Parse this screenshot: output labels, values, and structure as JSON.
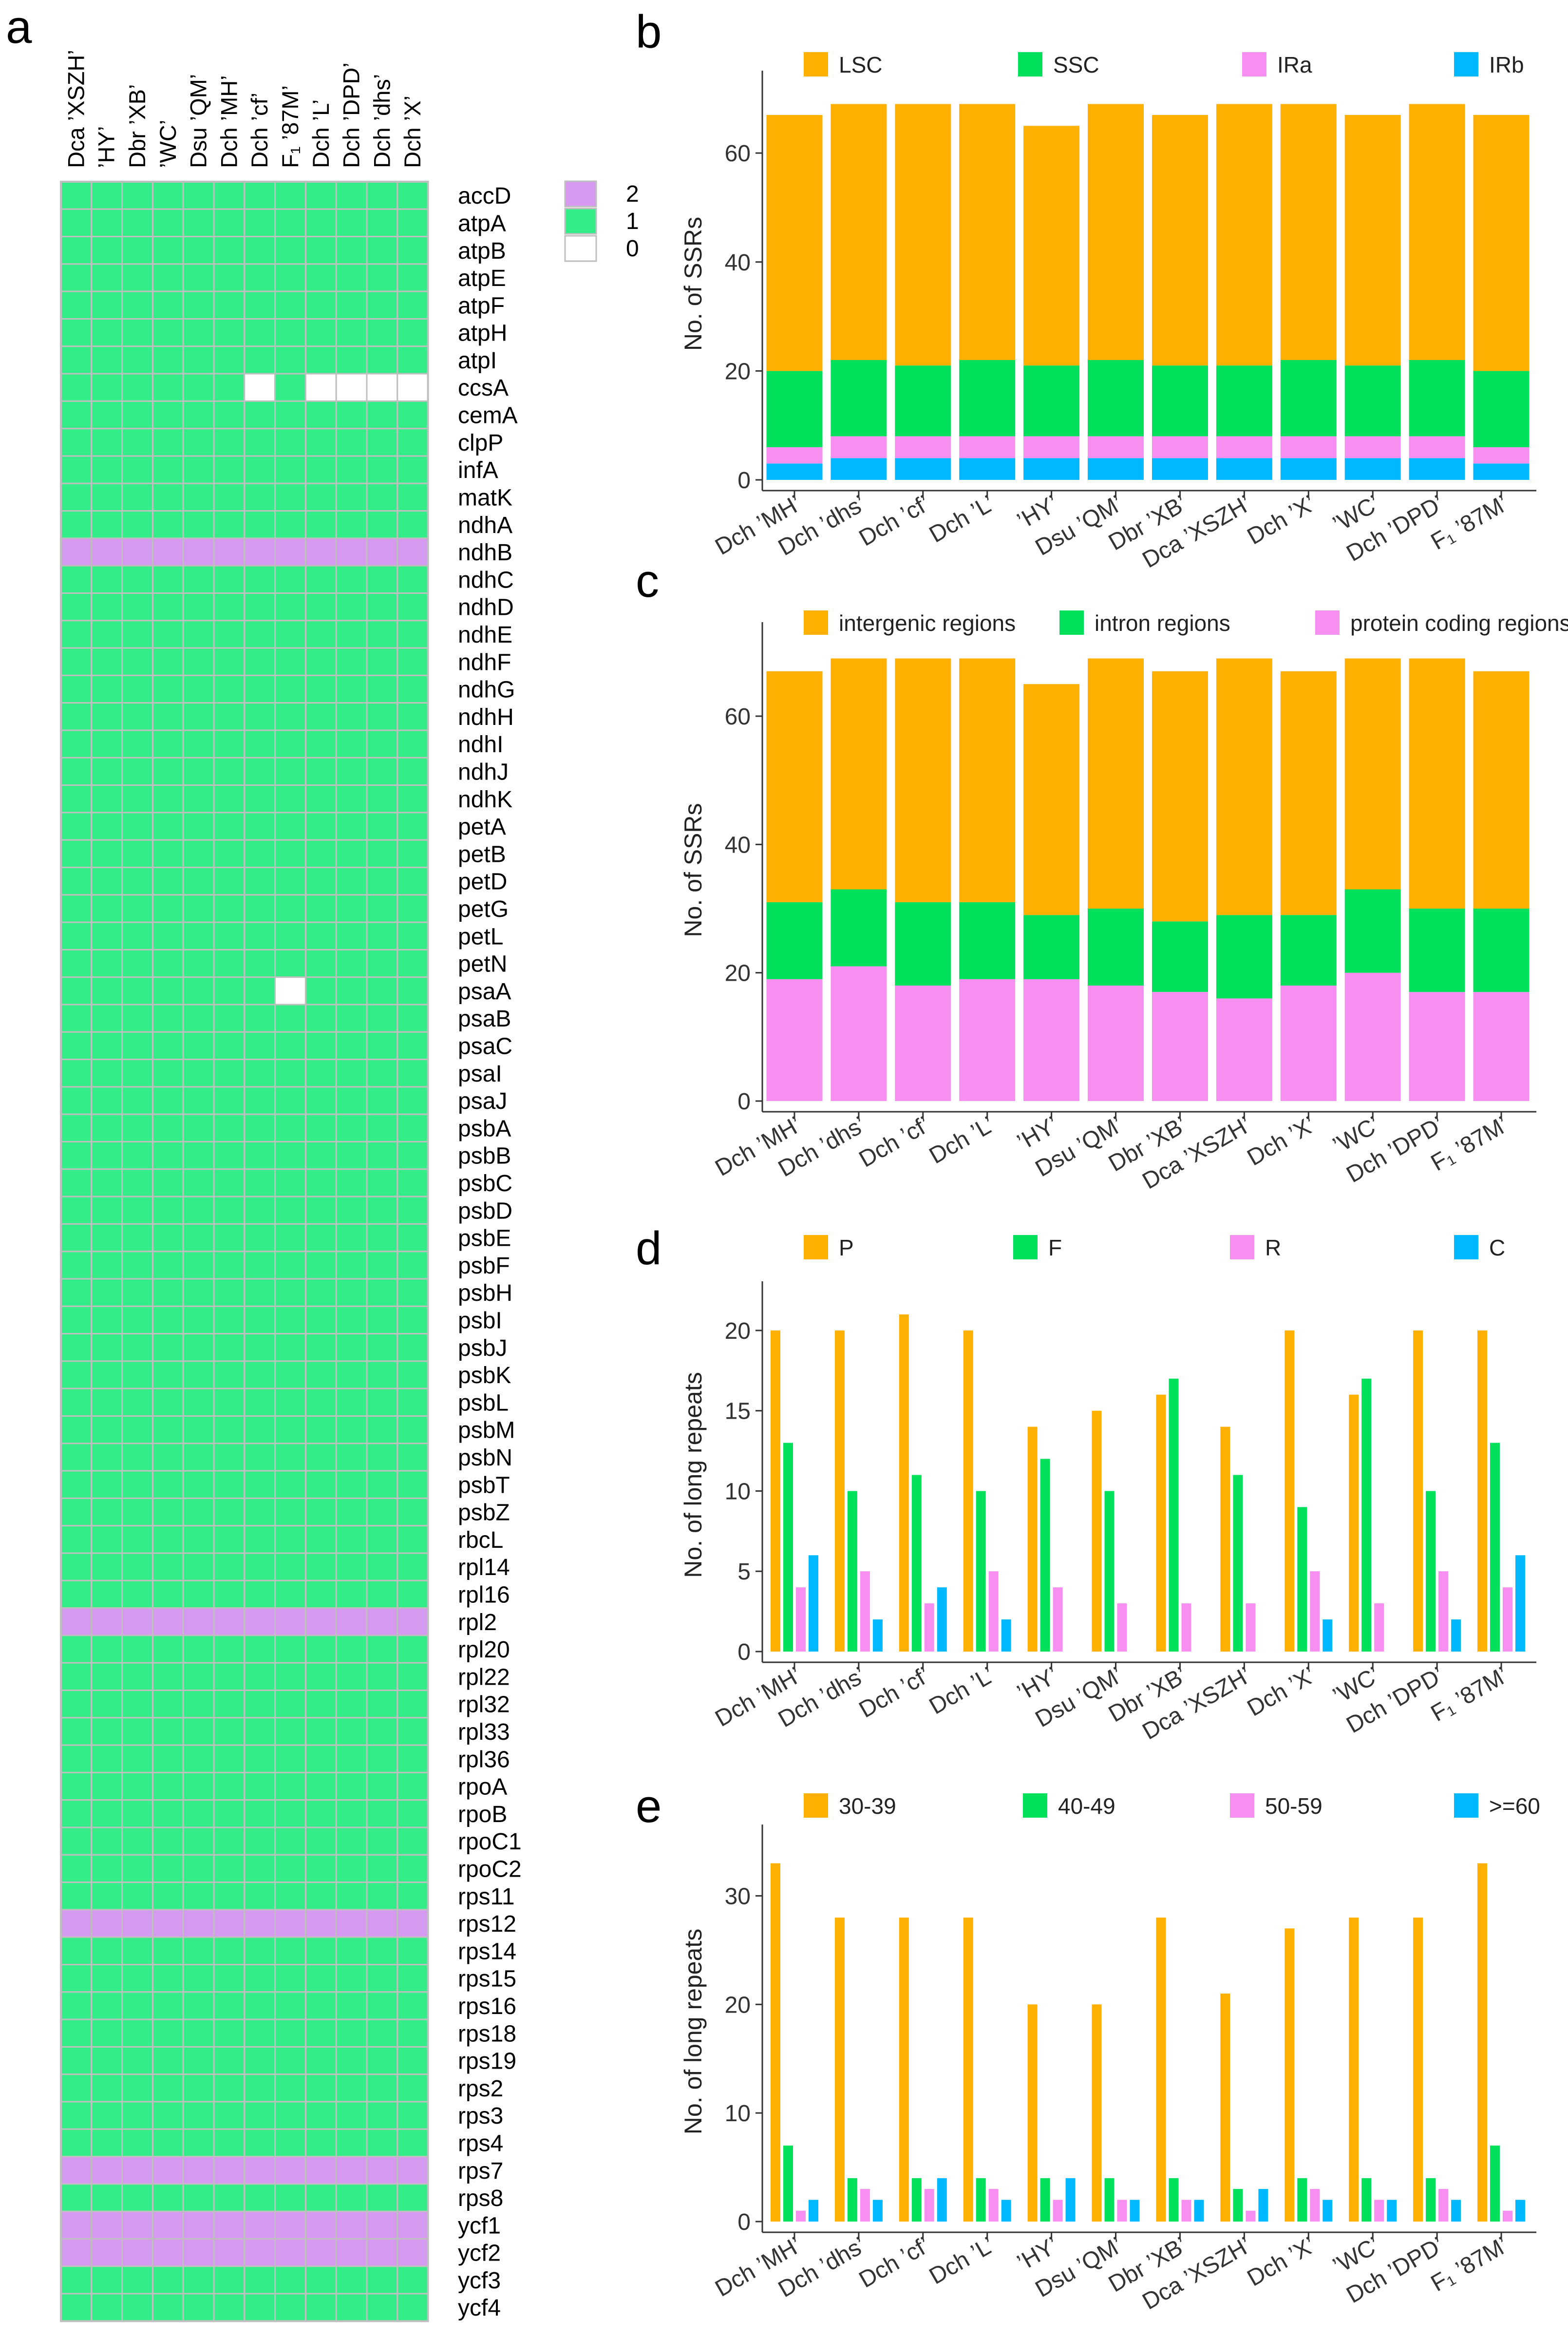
{
  "panels": {
    "a": "a",
    "b": "b",
    "c": "c",
    "d": "d",
    "e": "e"
  },
  "chart_data": [
    {
      "id": "a",
      "type": "heatmap",
      "columns": [
        "Dca 'XSZH'",
        "'HY'",
        "Dbr 'XB'",
        "'WC'",
        "Dsu 'QM'",
        "Dch 'MH'",
        "Dch 'cf'",
        "F₁ '87M'",
        "Dch 'L'",
        "Dch 'DPD'",
        "Dch 'dhs'",
        "Dch 'X'"
      ],
      "rows": [
        "accD",
        "atpA",
        "atpB",
        "atpE",
        "atpF",
        "atpH",
        "atpI",
        "ccsA",
        "cemA",
        "clpP",
        "infA",
        "matK",
        "ndhA",
        "ndhB",
        "ndhC",
        "ndhD",
        "ndhE",
        "ndhF",
        "ndhG",
        "ndhH",
        "ndhI",
        "ndhJ",
        "ndhK",
        "petA",
        "petB",
        "petD",
        "petG",
        "petL",
        "petN",
        "psaA",
        "psaB",
        "psaC",
        "psaI",
        "psaJ",
        "psbA",
        "psbB",
        "psbC",
        "psbD",
        "psbE",
        "psbF",
        "psbH",
        "psbI",
        "psbJ",
        "psbK",
        "psbL",
        "psbM",
        "psbN",
        "psbT",
        "psbZ",
        "rbcL",
        "rpl14",
        "rpl16",
        "rpl2",
        "rpl20",
        "rpl22",
        "rpl32",
        "rpl33",
        "rpl36",
        "rpoA",
        "rpoB",
        "rpoC1",
        "rpoC2",
        "rps11",
        "rps12",
        "rps14",
        "rps15",
        "rps16",
        "rps18",
        "rps19",
        "rps2",
        "rps3",
        "rps4",
        "rps7",
        "rps8",
        "ycf1",
        "ycf2",
        "ycf3",
        "ycf4"
      ],
      "default_value": 1,
      "double_copy_rows": [
        "ndhB",
        "rpl2",
        "rps12",
        "rps7",
        "ycf1",
        "ycf2"
      ],
      "absent_cells": [
        {
          "row": "ccsA",
          "columns": [
            "Dch 'cf'",
            "Dch 'L'",
            "Dch 'DPD'",
            "Dch 'dhs'",
            "Dch 'X'"
          ]
        },
        {
          "row": "psaA",
          "columns": [
            "F₁ '87M'"
          ]
        }
      ],
      "legend": [
        {
          "label": "2",
          "color": "#d699f0"
        },
        {
          "label": "1",
          "color": "#33ee88"
        },
        {
          "label": "0",
          "color": "#ffffff"
        }
      ]
    },
    {
      "id": "b",
      "type": "bar",
      "stacked": true,
      "categories": [
        "Dch 'MH'",
        "Dch 'dhs'",
        "Dch 'cf'",
        "Dch 'L'",
        "'HY'",
        "Dsu 'QM'",
        "Dbr 'XB'",
        "Dca 'XSZH'",
        "Dch 'X'",
        "'WC'",
        "Dch 'DPD'",
        "F₁ '87M'"
      ],
      "series": [
        {
          "name": "LSC",
          "color": "#ffb000",
          "values": [
            47,
            47,
            48,
            47,
            44,
            47,
            46,
            48,
            47,
            46,
            47,
            47
          ]
        },
        {
          "name": "SSC",
          "color": "#00e05a",
          "values": [
            14,
            14,
            13,
            14,
            13,
            14,
            13,
            13,
            14,
            13,
            14,
            14
          ]
        },
        {
          "name": "IRa",
          "color": "#f78ff0",
          "values": [
            3,
            4,
            4,
            4,
            4,
            4,
            4,
            4,
            4,
            4,
            4,
            3
          ]
        },
        {
          "name": "IRb",
          "color": "#00b8ff",
          "values": [
            3,
            4,
            4,
            4,
            4,
            4,
            4,
            4,
            4,
            4,
            4,
            3
          ]
        }
      ],
      "ylabel": "No. of SSRs",
      "ylim": [
        0,
        72
      ],
      "yticks": [
        0,
        20,
        40,
        60
      ]
    },
    {
      "id": "c",
      "type": "bar",
      "stacked": true,
      "categories": [
        "Dch 'MH'",
        "Dch 'dhs'",
        "Dch 'cf'",
        "Dch 'L'",
        "'HY'",
        "Dsu 'QM'",
        "Dbr 'XB'",
        "Dca 'XSZH'",
        "Dch 'X'",
        "'WC'",
        "Dch 'DPD'",
        "F₁ '87M'"
      ],
      "series": [
        {
          "name": "intergenic regions",
          "color": "#ffb000",
          "values": [
            36,
            36,
            38,
            38,
            36,
            39,
            39,
            40,
            38,
            36,
            39,
            37
          ]
        },
        {
          "name": "intron regions",
          "color": "#00e05a",
          "values": [
            12,
            12,
            13,
            12,
            10,
            12,
            11,
            13,
            11,
            13,
            13,
            13
          ]
        },
        {
          "name": "protein coding regions",
          "color": "#f78ff0",
          "values": [
            19,
            21,
            18,
            19,
            19,
            18,
            17,
            16,
            18,
            20,
            17,
            17
          ]
        }
      ],
      "ylabel": "No. of SSRs",
      "ylim": [
        0,
        72
      ],
      "yticks": [
        0,
        20,
        40,
        60
      ]
    },
    {
      "id": "d",
      "type": "bar",
      "stacked": false,
      "categories": [
        "Dch 'MH'",
        "Dch 'dhs'",
        "Dch 'cf'",
        "Dch 'L'",
        "'HY'",
        "Dsu 'QM'",
        "Dbr 'XB'",
        "Dca 'XSZH'",
        "Dch 'X'",
        "'WC'",
        "Dch 'DPD'",
        "F₁ '87M'"
      ],
      "series": [
        {
          "name": "P",
          "color": "#ffb000",
          "values": [
            20,
            20,
            21,
            20,
            14,
            15,
            16,
            14,
            20,
            16,
            20,
            20
          ]
        },
        {
          "name": "F",
          "color": "#00e05a",
          "values": [
            13,
            10,
            11,
            10,
            12,
            10,
            17,
            11,
            9,
            17,
            10,
            13
          ]
        },
        {
          "name": "R",
          "color": "#f78ff0",
          "values": [
            4,
            5,
            3,
            5,
            4,
            3,
            3,
            3,
            5,
            3,
            5,
            4
          ]
        },
        {
          "name": "C",
          "color": "#00b8ff",
          "values": [
            6,
            2,
            4,
            2,
            0,
            0,
            0,
            0,
            2,
            0,
            2,
            6
          ]
        }
      ],
      "ylabel": "No. of long repeats",
      "ylim": [
        0,
        22
      ],
      "yticks": [
        0,
        5,
        10,
        15,
        20
      ]
    },
    {
      "id": "e",
      "type": "bar",
      "stacked": false,
      "categories": [
        "Dch 'MH'",
        "Dch 'dhs'",
        "Dch 'cf'",
        "Dch 'L'",
        "'HY'",
        "Dsu 'QM'",
        "Dbr 'XB'",
        "Dca 'XSZH'",
        "Dch 'X'",
        "'WC'",
        "Dch 'DPD'",
        "F₁ '87M'"
      ],
      "series": [
        {
          "name": "30-39",
          "color": "#ffb000",
          "values": [
            33,
            28,
            28,
            28,
            20,
            20,
            28,
            21,
            27,
            28,
            28,
            33
          ]
        },
        {
          "name": "40-49",
          "color": "#00e05a",
          "values": [
            7,
            4,
            4,
            4,
            4,
            4,
            4,
            3,
            4,
            4,
            4,
            7
          ]
        },
        {
          "name": "50-59",
          "color": "#f78ff0",
          "values": [
            1,
            3,
            3,
            3,
            2,
            2,
            2,
            1,
            3,
            2,
            3,
            1
          ]
        },
        {
          "name": ">=60",
          "color": "#00b8ff",
          "values": [
            2,
            2,
            4,
            2,
            4,
            2,
            2,
            3,
            2,
            2,
            2,
            2
          ]
        }
      ],
      "ylabel": "No. of long repeats",
      "ylim": [
        0,
        35
      ],
      "yticks": [
        0,
        10,
        20,
        30
      ]
    }
  ]
}
